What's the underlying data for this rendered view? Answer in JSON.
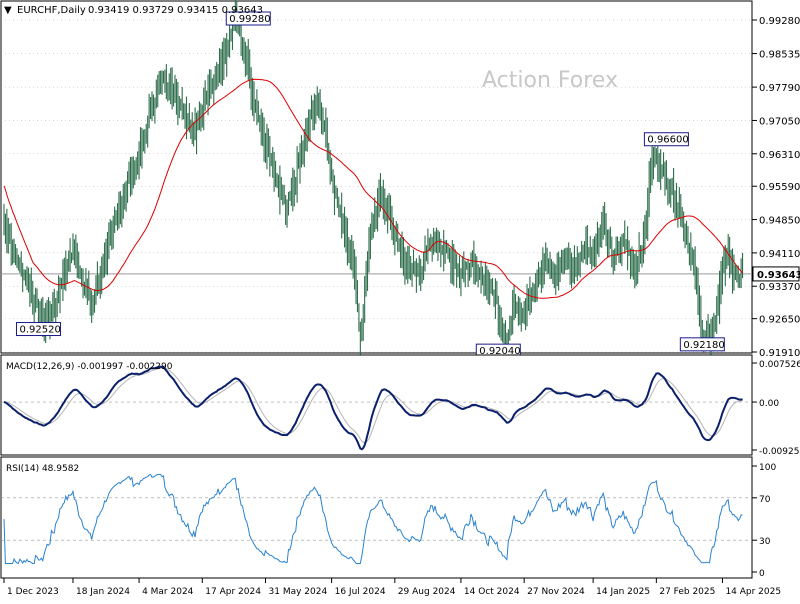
{
  "header": {
    "symbol": "EURCHF,Daily",
    "ohlc": "0.93419 0.93729 0.93415 0.93643"
  },
  "watermark": "Action Forex",
  "colors": {
    "bars": "#2e6e4c",
    "ma": "#dd0000",
    "macd": "#0b1f6b",
    "signal": "#b5b5b5",
    "rsi": "#2a82d0",
    "grid": "#9a9a9a",
    "frame": "#000000",
    "level": "#9a9a9a",
    "watermark": "#c8c8c8"
  },
  "chart_data": [
    {
      "type": "ohlc",
      "panel": "price",
      "title": "EURCHF,Daily",
      "ylim": [
        0.9191,
        0.9928
      ],
      "y_tick_labels": [
        "0.99280",
        "0.98535",
        "0.97790",
        "0.97050",
        "0.96310",
        "0.95590",
        "0.94850",
        "0.94110",
        "0.93370",
        "0.92650",
        "0.91910"
      ],
      "y_ticks": [
        0.9928,
        0.98535,
        0.9779,
        0.9705,
        0.9631,
        0.9559,
        0.9485,
        0.9411,
        0.9337,
        0.9265,
        0.9191
      ],
      "last_price": 0.93643,
      "last_price_label": "0.93643",
      "x_ticks": [
        {
          "day": 0,
          "label": "1 Dec 2023"
        },
        {
          "day": 48,
          "label": "18 Jan 2024"
        },
        {
          "day": 94,
          "label": "4 Mar 2024"
        },
        {
          "day": 138,
          "label": "17 Apr 2024"
        },
        {
          "day": 182,
          "label": "31 May 2024"
        },
        {
          "day": 228,
          "label": "16 Jul 2024"
        },
        {
          "day": 272,
          "label": "29 Aug 2024"
        },
        {
          "day": 318,
          "label": "14 Oct 2024"
        },
        {
          "day": 362,
          "label": "27 Nov 2024"
        },
        {
          "day": 410,
          "label": "14 Jan 2025"
        },
        {
          "day": 454,
          "label": "27 Feb 2025"
        },
        {
          "day": 500,
          "label": "14 Apr 2025"
        }
      ],
      "annotations": [
        {
          "label": "0.99280",
          "day": 170,
          "value": 0.9928
        },
        {
          "label": "0.92520",
          "day": 24,
          "value": 0.9252
        },
        {
          "label": "0.92040",
          "day": 344,
          "value": 0.9204
        },
        {
          "label": "0.96600",
          "day": 461,
          "value": 0.966
        },
        {
          "label": "0.92180",
          "day": 486,
          "value": 0.9218
        }
      ],
      "anchors": [
        [
          "1 Dec 2023",
          0.948
        ],
        [
          "8 Dec 2023",
          0.941
        ],
        [
          "18 Dec 2023",
          0.934
        ],
        [
          "28 Dec 2023",
          0.9252
        ],
        [
          "5 Jan 2024",
          0.929
        ],
        [
          "12 Jan 2024",
          0.937
        ],
        [
          "18 Jan 2024",
          0.942
        ],
        [
          "25 Jan 2024",
          0.935
        ],
        [
          "31 Jan 2024",
          0.93
        ],
        [
          "8 Feb 2024",
          0.938
        ],
        [
          "18 Feb 2024",
          0.95
        ],
        [
          "26 Feb 2024",
          0.958
        ],
        [
          "4 Mar 2024",
          0.962
        ],
        [
          "11 Mar 2024",
          0.972
        ],
        [
          "20 Mar 2024",
          0.98
        ],
        [
          "29 Mar 2024",
          0.976
        ],
        [
          "5 Apr 2024",
          0.972
        ],
        [
          "12 Apr 2024",
          0.968
        ],
        [
          "17 Apr 2024",
          0.974
        ],
        [
          "24 Apr 2024",
          0.978
        ],
        [
          "2 May 2024",
          0.985
        ],
        [
          "10 May 2024",
          0.9928
        ],
        [
          "17 May 2024",
          0.985
        ],
        [
          "24 May 2024",
          0.972
        ],
        [
          "31 May 2024",
          0.965
        ],
        [
          "7 Jun 2024",
          0.958
        ],
        [
          "14 Jun 2024",
          0.951
        ],
        [
          "21 Jun 2024",
          0.958
        ],
        [
          "28 Jun 2024",
          0.968
        ],
        [
          "5 Jul 2024",
          0.975
        ],
        [
          "11 Jul 2024",
          0.97
        ],
        [
          "16 Jul 2024",
          0.958
        ],
        [
          "23 Jul 2024",
          0.948
        ],
        [
          "31 Jul 2024",
          0.94
        ],
        [
          "5 Aug 2024",
          0.922
        ],
        [
          "12 Aug 2024",
          0.946
        ],
        [
          "19 Aug 2024",
          0.955
        ],
        [
          "29 Aug 2024",
          0.945
        ],
        [
          "6 Sep 2024",
          0.938
        ],
        [
          "15 Sep 2024",
          0.936
        ],
        [
          "24 Sep 2024",
          0.944
        ],
        [
          "2 Oct 2024",
          0.942
        ],
        [
          "9 Oct 2024",
          0.939
        ],
        [
          "14 Oct 2024",
          0.936
        ],
        [
          "21 Oct 2024",
          0.94
        ],
        [
          "31 Oct 2024",
          0.934
        ],
        [
          "8 Nov 2024",
          0.93
        ],
        [
          "15 Nov 2024",
          0.9204
        ],
        [
          "20 Nov 2024",
          0.93
        ],
        [
          "27 Nov 2024",
          0.928
        ],
        [
          "4 Dec 2024",
          0.933
        ],
        [
          "11 Dec 2024",
          0.94
        ],
        [
          "18 Dec 2024",
          0.936
        ],
        [
          "25 Dec 2024",
          0.94
        ],
        [
          "1 Jan 2025",
          0.938
        ],
        [
          "9 Jan 2025",
          0.943
        ],
        [
          "14 Jan 2025",
          0.94
        ],
        [
          "21 Jan 2025",
          0.948
        ],
        [
          "28 Jan 2025",
          0.94
        ],
        [
          "4 Feb 2025",
          0.944
        ],
        [
          "12 Feb 2025",
          0.938
        ],
        [
          "19 Feb 2025",
          0.945
        ],
        [
          "23 Feb 2025",
          0.96
        ],
        [
          "27 Feb 2025",
          0.963
        ],
        [
          "4 Mar 2025",
          0.958
        ],
        [
          "10 Mar 2025",
          0.955
        ],
        [
          "17 Mar 2025",
          0.948
        ],
        [
          "24 Mar 2025",
          0.94
        ],
        [
          "31 Mar 2025",
          0.924
        ],
        [
          "5 Apr 2025",
          0.9218
        ],
        [
          "11 Apr 2025",
          0.93
        ],
        [
          "14 Apr 2025",
          0.938
        ],
        [
          "18 Apr 2025",
          0.94
        ],
        [
          "23 Apr 2025",
          0.935
        ],
        [
          "28 Apr 2025",
          0.9364
        ]
      ]
    },
    {
      "type": "line",
      "panel": "macd",
      "title": "MACD(12,26,9) -0.001997 -0.002290",
      "ylim": [
        -0.00925,
        0.00753
      ],
      "y_tick_labels": [
        "0.007526",
        "0.00",
        "-0.009252"
      ],
      "y_ticks": [
        0.007526,
        0.0,
        -0.009252
      ],
      "series": [
        {
          "name": "MACD",
          "role": "main"
        },
        {
          "name": "Signal",
          "role": "signal"
        }
      ],
      "current": {
        "main": -0.001997,
        "signal": -0.00229
      }
    },
    {
      "type": "line",
      "panel": "rsi",
      "title": "RSI(14) 48.9582",
      "ylim": [
        0,
        100
      ],
      "y_tick_labels": [
        "100",
        "70",
        "30",
        "0"
      ],
      "y_ticks": [
        100,
        70,
        30,
        0
      ],
      "levels": [
        70,
        30
      ],
      "current": 48.9582
    }
  ]
}
